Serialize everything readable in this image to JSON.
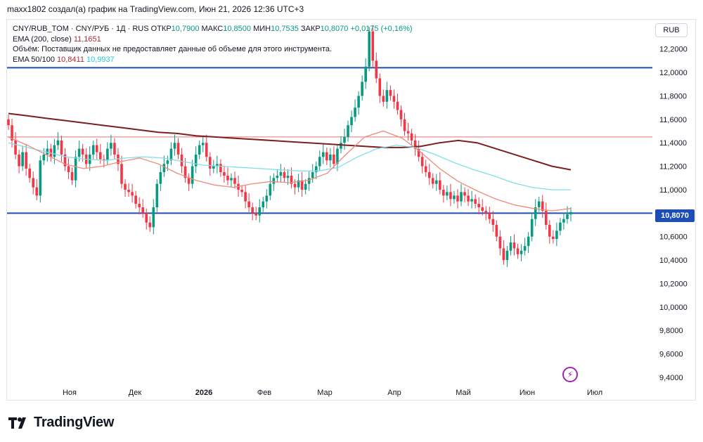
{
  "header": {
    "text": "maxx1802 создал(а) график на TradingView.com, Июн 21, 2026 12:36 UTC+3"
  },
  "legend": {
    "symbol": "CNY/RUB_TOM · CNY/РУБ · 1Д · RUS",
    "open_label": "ОТКР",
    "open_value": "10,7900",
    "high_label": "МАКС",
    "high_value": "10,8500",
    "low_label": "МИН",
    "low_value": "10,7535",
    "close_label": "ЗАКР",
    "close_value": "10,8070",
    "change": "+0,0175 (+0,16%)",
    "ema200_label": "EMA (200, close)",
    "ema200_value": "11,1651",
    "volume_note": "Объём: Поставщик данных не предоставляет данные об объеме для этого инструмента.",
    "ema50_100_label": "EMA 50/100",
    "ema50_value": "10,8411",
    "ema100_value": "10,9937"
  },
  "currency_button": "RUB",
  "price_tag": "10,8070",
  "logo_text": "TradingView",
  "colors": {
    "up": "#089981",
    "down": "#f23645",
    "ema200": "#7b1f1f",
    "ema50": "#ef8a7a",
    "ema100": "#80deea",
    "hline_blue": "#1e4db7",
    "hline_red": "#e57373"
  },
  "chart_data": {
    "type": "candlestick",
    "x_labels": [
      "Ноя",
      "Дек",
      "2026",
      "Фев",
      "Мар",
      "Апр",
      "Май",
      "Июн",
      "Июл"
    ],
    "y_ticks": [
      "12,2000",
      "12,0000",
      "11,8000",
      "11,6000",
      "11,4000",
      "11,2000",
      "11,0000",
      "10,8000",
      "10,6000",
      "10,4000",
      "10,2000",
      "10,0000",
      "9,8000",
      "9,6000",
      "9,4000"
    ],
    "y_tick_values": [
      12.2,
      12.0,
      11.8,
      11.6,
      11.4,
      11.2,
      11.0,
      10.8,
      10.6,
      10.4,
      10.2,
      10.0,
      9.8,
      9.6,
      9.4
    ],
    "ylim": [
      9.37,
      12.45
    ],
    "horizontal_lines": [
      {
        "value": 12.04,
        "color": "#1e4db7"
      },
      {
        "value": 11.45,
        "color": "#e57373"
      },
      {
        "value": 10.8,
        "color": "#1e4db7"
      }
    ],
    "closes": [
      11.55,
      11.42,
      11.3,
      11.2,
      11.32,
      11.18,
      11.1,
      11.02,
      10.95,
      11.25,
      11.3,
      11.35,
      11.28,
      11.38,
      11.42,
      11.3,
      11.2,
      11.15,
      11.08,
      11.28,
      11.35,
      11.3,
      11.22,
      11.3,
      11.38,
      11.32,
      11.26,
      11.25,
      11.35,
      11.4,
      11.3,
      11.22,
      11.05,
      11.0,
      10.98,
      10.95,
      10.88,
      10.85,
      10.8,
      10.72,
      10.68,
      10.85,
      11.05,
      11.15,
      11.22,
      11.25,
      11.35,
      11.4,
      11.3,
      11.2,
      11.1,
      11.05,
      11.2,
      11.3,
      11.38,
      11.4,
      11.28,
      11.18,
      11.2,
      11.22,
      11.15,
      11.12,
      11.08,
      11.1,
      11.05,
      11.0,
      10.98,
      10.9,
      10.85,
      10.8,
      10.78,
      10.85,
      10.9,
      10.95,
      11.05,
      11.1,
      11.12,
      11.15,
      11.1,
      11.12,
      11.05,
      11.02,
      11.08,
      11.0,
      11.05,
      11.1,
      11.15,
      11.2,
      11.28,
      11.32,
      11.25,
      11.3,
      11.22,
      11.35,
      11.4,
      11.45,
      11.55,
      11.62,
      11.7,
      11.8,
      11.92,
      12.05,
      12.35,
      12.1,
      11.95,
      11.8,
      11.75,
      11.85,
      11.8,
      11.75,
      11.68,
      11.6,
      11.5,
      11.48,
      11.42,
      11.35,
      11.28,
      11.2,
      11.15,
      11.1,
      11.05,
      11.08,
      11.0,
      10.95,
      10.98,
      10.92,
      10.95,
      10.9,
      10.98,
      10.95,
      10.9,
      10.92,
      10.88,
      10.85,
      10.82,
      10.8,
      10.75,
      10.7,
      10.6,
      10.5,
      10.4,
      10.48,
      10.55,
      10.5,
      10.45,
      10.48,
      10.52,
      10.6,
      10.75,
      10.85,
      10.9,
      10.82,
      10.7,
      10.6,
      10.58,
      10.65,
      10.72,
      10.75,
      10.79,
      10.81
    ],
    "ema200": [
      11.65,
      11.63,
      11.61,
      11.59,
      11.57,
      11.55,
      11.53,
      11.51,
      11.49,
      11.48,
      11.46,
      11.45,
      11.44,
      11.43,
      11.42,
      11.41,
      11.4,
      11.39,
      11.38,
      11.37,
      11.36,
      11.36,
      11.37,
      11.4,
      11.42,
      11.4,
      11.35,
      11.3,
      11.25,
      11.2,
      11.17
    ],
    "ema100": [
      11.4,
      11.36,
      11.32,
      11.28,
      11.26,
      11.25,
      11.27,
      11.28,
      11.27,
      11.24,
      11.21,
      11.2,
      11.19,
      11.18,
      11.17,
      11.16,
      11.16,
      11.19,
      11.28,
      11.35,
      11.38,
      11.36,
      11.3,
      11.23,
      11.17,
      11.12,
      11.06,
      11.02,
      11.0,
      11.0
    ],
    "ema50": [
      11.45,
      11.38,
      11.3,
      11.22,
      11.18,
      11.2,
      11.24,
      11.27,
      11.22,
      11.14,
      11.08,
      11.04,
      11.02,
      11.05,
      11.07,
      11.06,
      11.08,
      11.14,
      11.3,
      11.45,
      11.5,
      11.44,
      11.32,
      11.18,
      11.07,
      10.99,
      10.92,
      10.87,
      10.84,
      10.82,
      10.84
    ]
  }
}
